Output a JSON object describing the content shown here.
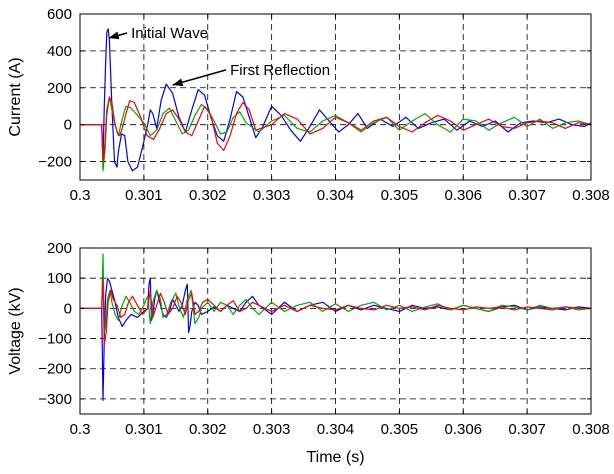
{
  "chart_data": [
    {
      "type": "line",
      "xlabel": "",
      "ylabel": "Current (A)",
      "xlim": [
        0.3,
        0.308
      ],
      "ylim": [
        -300,
        600
      ],
      "xticks": [
        0.3,
        0.301,
        0.302,
        0.303,
        0.304,
        0.305,
        0.306,
        0.307,
        0.308
      ],
      "xtick_labels": [
        "0.3",
        "0.301",
        "0.302",
        "0.303",
        "0.304",
        "0.305",
        "0.306",
        "0.307",
        "0.308"
      ],
      "yticks": [
        -200,
        0,
        200,
        400,
        600
      ],
      "ytick_labels": [
        "−200",
        "0",
        "200",
        "400",
        "600"
      ],
      "grid": true,
      "series": [
        {
          "color": "#0000ff",
          "x": [
            0.3,
            0.30034,
            0.30036,
            0.30038,
            0.3004,
            0.30042,
            0.30044,
            0.30046,
            0.3005,
            0.30054,
            0.30058,
            0.3006,
            0.30065,
            0.3007,
            0.30075,
            0.30082,
            0.3009,
            0.30098,
            0.30106,
            0.3011,
            0.30114,
            0.3012,
            0.30127,
            0.30135,
            0.30145,
            0.30155,
            0.30165,
            0.30175,
            0.30185,
            0.30195,
            0.30205,
            0.30215,
            0.30225,
            0.30235,
            0.30245,
            0.30255,
            0.30265,
            0.30275,
            0.30285,
            0.303,
            0.30315,
            0.3033,
            0.30345,
            0.3036,
            0.30375,
            0.3039,
            0.30405,
            0.3042,
            0.30435,
            0.3045,
            0.3047,
            0.3049,
            0.3051,
            0.3053,
            0.3055,
            0.3057,
            0.3059,
            0.3061,
            0.3063,
            0.3065,
            0.3067,
            0.3069,
            0.3071,
            0.3073,
            0.3075,
            0.3077,
            0.3079,
            0.308
          ],
          "y": [
            0,
            0,
            -180,
            100,
            330,
            500,
            520,
            460,
            100,
            -200,
            -230,
            -150,
            -50,
            -60,
            -200,
            -250,
            -230,
            -120,
            0,
            80,
            60,
            -20,
            130,
            220,
            170,
            40,
            -40,
            80,
            190,
            160,
            40,
            -60,
            -90,
            30,
            180,
            150,
            40,
            -70,
            -20,
            100,
            50,
            -30,
            -90,
            -10,
            80,
            20,
            -40,
            0,
            60,
            -20,
            30,
            -10,
            40,
            -20,
            10,
            30,
            -30,
            20,
            -10,
            20,
            -40,
            10,
            20,
            10,
            30,
            0,
            -10,
            10
          ]
        },
        {
          "color": "#00aa00",
          "x": [
            0.3,
            0.30034,
            0.30036,
            0.30039,
            0.30042,
            0.30046,
            0.3005,
            0.30055,
            0.3006,
            0.30066,
            0.30072,
            0.3008,
            0.3009,
            0.301,
            0.3011,
            0.3012,
            0.3013,
            0.3014,
            0.3015,
            0.3016,
            0.3017,
            0.3018,
            0.3019,
            0.302,
            0.3021,
            0.3022,
            0.3023,
            0.3024,
            0.3025,
            0.3026,
            0.3028,
            0.303,
            0.3032,
            0.3034,
            0.3036,
            0.3038,
            0.304,
            0.3042,
            0.3044,
            0.3046,
            0.3048,
            0.305,
            0.3052,
            0.3054,
            0.3056,
            0.3058,
            0.306,
            0.3062,
            0.3064,
            0.3066,
            0.3068,
            0.307,
            0.3072,
            0.3074,
            0.3076,
            0.3078,
            0.308
          ],
          "y": [
            0,
            0,
            -250,
            -150,
            50,
            150,
            80,
            0,
            -60,
            30,
            100,
            90,
            50,
            10,
            -60,
            -30,
            60,
            90,
            20,
            -50,
            -30,
            50,
            110,
            80,
            20,
            -50,
            -40,
            40,
            70,
            10,
            -40,
            20,
            50,
            -20,
            -40,
            20,
            50,
            10,
            -40,
            10,
            40,
            -30,
            20,
            60,
            0,
            -40,
            30,
            20,
            -30,
            10,
            40,
            -10,
            30,
            -20,
            10,
            20,
            0
          ]
        },
        {
          "color": "#ff0000",
          "x": [
            0.3,
            0.30034,
            0.30036,
            0.30039,
            0.30042,
            0.30046,
            0.3005,
            0.30054,
            0.30058,
            0.30062,
            0.30066,
            0.30072,
            0.30078,
            0.30085,
            0.30095,
            0.30105,
            0.30115,
            0.30125,
            0.30135,
            0.30145,
            0.30155,
            0.30165,
            0.30175,
            0.30185,
            0.30195,
            0.30205,
            0.30215,
            0.30225,
            0.30235,
            0.30245,
            0.30255,
            0.30265,
            0.30275,
            0.303,
            0.3032,
            0.3034,
            0.3036,
            0.3038,
            0.304,
            0.3042,
            0.3044,
            0.3046,
            0.3048,
            0.305,
            0.3052,
            0.3054,
            0.3056,
            0.3058,
            0.306,
            0.3062,
            0.3064,
            0.3066,
            0.3068,
            0.307,
            0.3072,
            0.3074,
            0.3076,
            0.3078,
            0.308
          ],
          "y": [
            0,
            0,
            -200,
            -100,
            80,
            150,
            120,
            20,
            -40,
            -60,
            -20,
            60,
            130,
            120,
            40,
            -60,
            -80,
            -20,
            60,
            80,
            30,
            -40,
            -60,
            20,
            100,
            50,
            -100,
            -140,
            -60,
            60,
            120,
            80,
            -30,
            0,
            60,
            30,
            -50,
            -20,
            40,
            10,
            -30,
            20,
            40,
            -10,
            -40,
            10,
            50,
            20,
            -30,
            0,
            30,
            -10,
            -20,
            10,
            20,
            10,
            -20,
            10,
            0
          ]
        }
      ],
      "annotations": [
        {
          "text": "Initial Wave",
          "x": 0.3008,
          "y": 470,
          "arrow_to": [
            0.30045,
            470
          ]
        },
        {
          "text": "First Reflection",
          "x": 0.30235,
          "y": 270,
          "arrow_to": [
            0.30145,
            215
          ]
        }
      ]
    },
    {
      "type": "line",
      "xlabel": "Time (s)",
      "ylabel": "Voltage (kV)",
      "xlim": [
        0.3,
        0.308
      ],
      "ylim": [
        -350,
        200
      ],
      "xticks": [
        0.3,
        0.301,
        0.302,
        0.303,
        0.304,
        0.305,
        0.306,
        0.307,
        0.308
      ],
      "xtick_labels": [
        "0.3",
        "0.301",
        "0.302",
        "0.303",
        "0.304",
        "0.305",
        "0.306",
        "0.307",
        "0.308"
      ],
      "yticks": [
        -300,
        -200,
        -100,
        0,
        100,
        200
      ],
      "ytick_labels": [
        "−300",
        "−200",
        "−100",
        "0",
        "100",
        "200"
      ],
      "grid": true,
      "series": [
        {
          "color": "#0000ff",
          "x": [
            0.3,
            0.30034,
            0.30036,
            0.30038,
            0.3004,
            0.30043,
            0.30046,
            0.3005,
            0.30055,
            0.3006,
            0.30066,
            0.30072,
            0.3008,
            0.3009,
            0.301,
            0.30106,
            0.30108,
            0.3011,
            0.30112,
            0.30114,
            0.30117,
            0.3012,
            0.30125,
            0.3013,
            0.30135,
            0.3014,
            0.30145,
            0.3015,
            0.30155,
            0.3016,
            0.30165,
            0.30168,
            0.3017,
            0.30172,
            0.30175,
            0.3018,
            0.30185,
            0.3019,
            0.302,
            0.3021,
            0.3022,
            0.3023,
            0.3024,
            0.3025,
            0.3026,
            0.3027,
            0.3028,
            0.303,
            0.3032,
            0.3034,
            0.3036,
            0.3038,
            0.304,
            0.3042,
            0.3044,
            0.3046,
            0.3048,
            0.305,
            0.3052,
            0.3054,
            0.3056,
            0.3058,
            0.306,
            0.3062,
            0.3064,
            0.3066,
            0.3068,
            0.307,
            0.3072,
            0.3074,
            0.3076,
            0.3078,
            0.308
          ],
          "y": [
            0,
            0,
            -305,
            -100,
            40,
            100,
            90,
            60,
            20,
            -30,
            -60,
            -40,
            -20,
            -30,
            -10,
            0,
            80,
            100,
            -40,
            -20,
            30,
            60,
            20,
            -20,
            -30,
            -10,
            30,
            10,
            -10,
            10,
            60,
            80,
            -80,
            -60,
            -10,
            20,
            10,
            -20,
            -10,
            5,
            -10,
            10,
            0,
            -10,
            20,
            40,
            10,
            -20,
            20,
            -10,
            10,
            20,
            -10,
            10,
            -5,
            10,
            0,
            -10,
            10,
            0,
            5,
            -5,
            10,
            0,
            -10,
            5,
            10,
            -5,
            5,
            0,
            -5,
            5,
            0
          ]
        },
        {
          "color": "#00aa00",
          "x": [
            0.3,
            0.30034,
            0.30036,
            0.30038,
            0.3004,
            0.30043,
            0.30047,
            0.3005,
            0.30055,
            0.3006,
            0.30066,
            0.30072,
            0.30078,
            0.30085,
            0.30092,
            0.301,
            0.30106,
            0.3011,
            0.30114,
            0.3012,
            0.30126,
            0.3013,
            0.30136,
            0.30142,
            0.3015,
            0.30156,
            0.30162,
            0.30168,
            0.30174,
            0.3018,
            0.30186,
            0.3019,
            0.302,
            0.3021,
            0.3022,
            0.3023,
            0.3024,
            0.3025,
            0.3026,
            0.3027,
            0.3028,
            0.303,
            0.3032,
            0.3034,
            0.3036,
            0.3038,
            0.304,
            0.3042,
            0.3044,
            0.3046,
            0.3048,
            0.305,
            0.3052,
            0.3054,
            0.3056,
            0.3058,
            0.306,
            0.3062,
            0.3064,
            0.3066,
            0.3068,
            0.307,
            0.3072,
            0.3074,
            0.3076,
            0.3078,
            0.308
          ],
          "y": [
            0,
            0,
            180,
            -80,
            -60,
            30,
            60,
            20,
            -20,
            -40,
            10,
            40,
            20,
            -10,
            -20,
            10,
            40,
            -50,
            20,
            60,
            30,
            -30,
            -20,
            20,
            50,
            0,
            -30,
            30,
            60,
            -50,
            -30,
            0,
            20,
            -10,
            20,
            10,
            -20,
            10,
            30,
            0,
            -20,
            20,
            -10,
            10,
            20,
            -10,
            15,
            -10,
            10,
            20,
            -5,
            10,
            -10,
            5,
            15,
            -5,
            10,
            0,
            -10,
            10,
            5,
            -5,
            10,
            0,
            5,
            -5,
            0
          ]
        },
        {
          "color": "#ff0000",
          "x": [
            0.3,
            0.30034,
            0.30036,
            0.30038,
            0.30041,
            0.30044,
            0.30048,
            0.30052,
            0.30058,
            0.30064,
            0.3007,
            0.30076,
            0.30082,
            0.3009,
            0.30098,
            0.30106,
            0.3011,
            0.30114,
            0.3012,
            0.30126,
            0.30132,
            0.30138,
            0.30145,
            0.30152,
            0.30158,
            0.30165,
            0.3017,
            0.30175,
            0.3018,
            0.30186,
            0.30192,
            0.302,
            0.3021,
            0.3022,
            0.3023,
            0.3024,
            0.3025,
            0.3026,
            0.3027,
            0.3028,
            0.303,
            0.3032,
            0.3034,
            0.3036,
            0.3038,
            0.304,
            0.3042,
            0.3044,
            0.3046,
            0.3048,
            0.305,
            0.3052,
            0.3054,
            0.3056,
            0.3058,
            0.306,
            0.3062,
            0.3064,
            0.3066,
            0.3068,
            0.307,
            0.3072,
            0.3074,
            0.3076,
            0.3078,
            0.308
          ],
          "y": [
            0,
            0,
            100,
            -120,
            -80,
            20,
            60,
            30,
            10,
            -30,
            -20,
            20,
            40,
            10,
            -20,
            0,
            60,
            -30,
            10,
            50,
            20,
            -20,
            0,
            40,
            20,
            -20,
            30,
            50,
            -20,
            -10,
            20,
            30,
            10,
            -10,
            10,
            25,
            -10,
            0,
            20,
            10,
            -10,
            10,
            -10,
            10,
            0,
            -5,
            10,
            0,
            -5,
            10,
            0,
            5,
            -5,
            10,
            0,
            -5,
            5,
            0,
            5,
            -5,
            5,
            0,
            -5,
            5,
            0,
            0
          ]
        }
      ],
      "annotations": []
    }
  ]
}
